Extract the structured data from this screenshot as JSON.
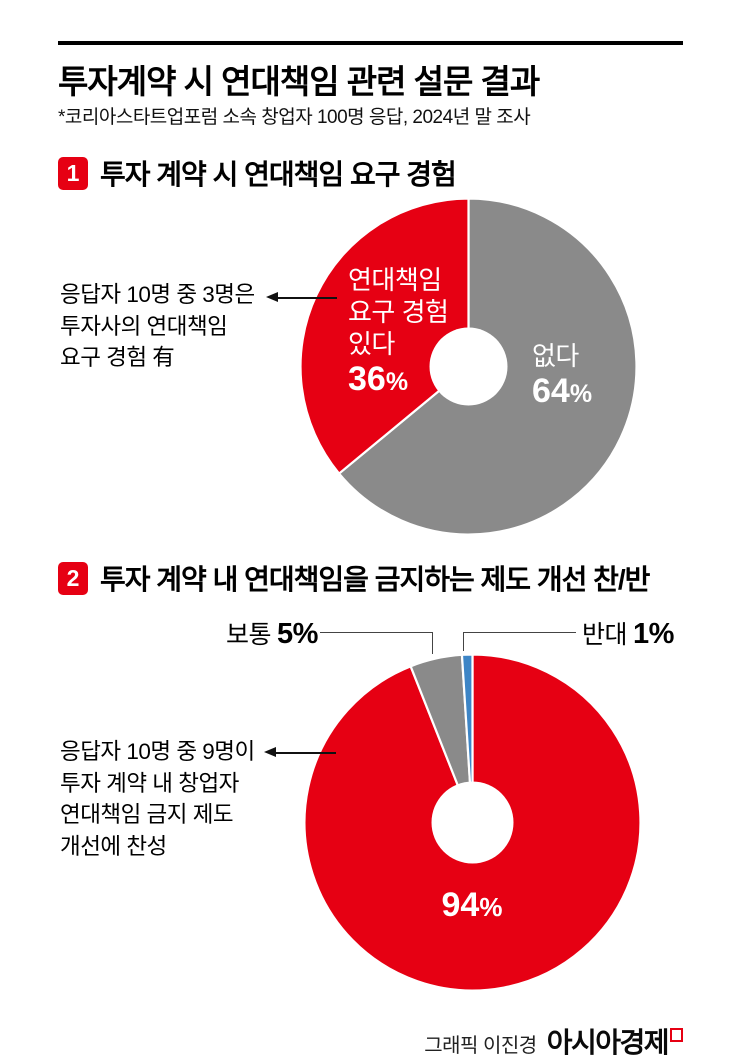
{
  "header": {
    "title": "투자계약 시 연대책임 관련 설문 결과",
    "subtitle": "*코리아스타트업포럼 소속 창업자 100명 응답, 2024년 말 조사"
  },
  "units": {
    "percent": "%"
  },
  "colors": {
    "red": "#e60013",
    "gray": "#8a8a8a",
    "blue": "#3d85c6",
    "rule": "#000000"
  },
  "sections": [
    {
      "number": "1",
      "title": "투자 계약 시 연대책임 요구 경험",
      "annotation_lines": [
        "응답자 10명 중 3명은",
        "투자사의 연대책임",
        "요구 경험 有"
      ]
    },
    {
      "number": "2",
      "title": "투자 계약 내 연대책임을 금지하는 제도 개선 찬/반",
      "annotation_lines": [
        "응답자 10명 중 9명이",
        "투자 계약 내 창업자",
        "연대책임 금지 제도",
        "개선에 찬성"
      ]
    }
  ],
  "chart_data": [
    {
      "type": "pie",
      "subtype": "donut",
      "title": "투자 계약 시 연대책임 요구 경험",
      "unit": "%",
      "slice_order": "clockwise-from-12-oclock",
      "slices": [
        {
          "label": "없다",
          "value": 64,
          "pct_num": "64",
          "color": "#8a8a8a"
        },
        {
          "label": "연대책임 요구 경험 있다",
          "value": 36,
          "pct_num": "36",
          "color": "#e60013",
          "label_lines": [
            "연대책임",
            "요구 경험",
            "있다"
          ]
        }
      ],
      "annotation": "응답자 10명 중 3명은 투자사의 연대책임 요구 경험 有"
    },
    {
      "type": "pie",
      "subtype": "donut",
      "title": "투자 계약 내 연대책임을 금지하는 제도 개선 찬/반",
      "unit": "%",
      "slice_order": "clockwise-from-12-oclock",
      "slices": [
        {
          "label": "찬성",
          "value": 94,
          "pct_num": "94",
          "color": "#e60013"
        },
        {
          "label": "보통",
          "value": 5,
          "pct_num": "5",
          "color": "#8a8a8a"
        },
        {
          "label": "반대",
          "value": 1,
          "pct_num": "1",
          "color": "#3d85c6"
        }
      ],
      "annotation": "응답자 10명 중 9명이 투자 계약 내 창업자 연대책임 금지 제도 개선에 찬성"
    }
  ],
  "footer": {
    "credit": "그래픽 이진경",
    "brand": "아시아경제"
  }
}
